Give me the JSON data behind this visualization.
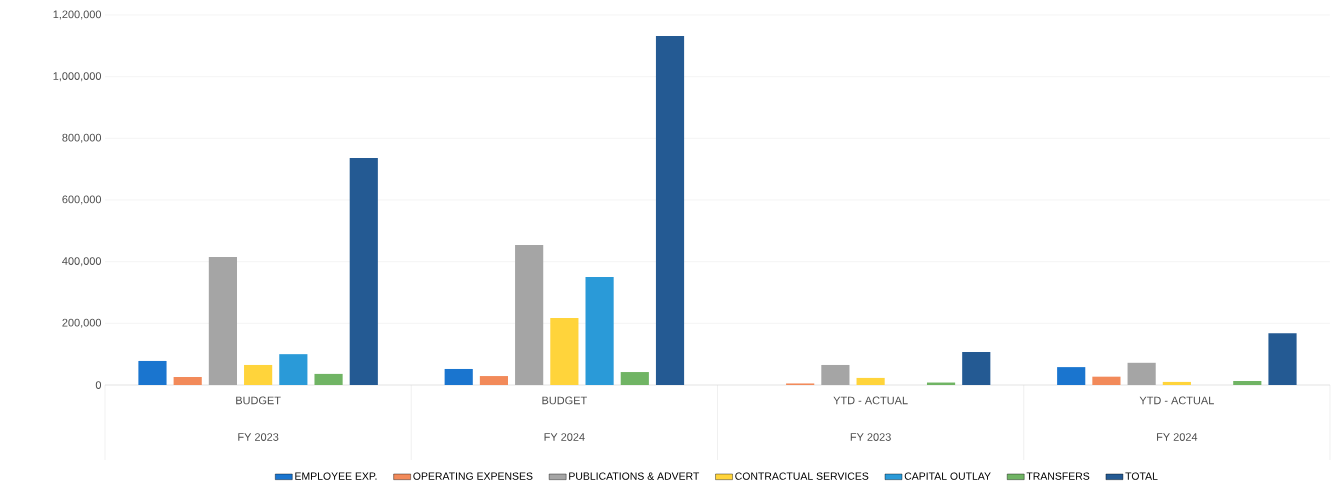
{
  "chart_data": {
    "type": "bar",
    "categories": [
      "BUDGET",
      "BUDGET",
      "YTD - ACTUAL",
      "YTD - ACTUAL"
    ],
    "annotations": [
      "FY 2023",
      "FY 2024",
      "FY 2023",
      "FY 2024"
    ],
    "series": [
      {
        "name": "EMPLOYEE EXP.",
        "color": "#1a75cf",
        "values": [
          78000,
          52000,
          null,
          58000
        ]
      },
      {
        "name": "OPERATING EXPENSES",
        "color": "#f28a5a",
        "values": [
          26000,
          29000,
          5000,
          27000
        ]
      },
      {
        "name": "PUBLICATIONS & ADVERT",
        "color": "#a5a5a5",
        "values": [
          415000,
          454000,
          65000,
          72000
        ]
      },
      {
        "name": "CONTRACTUAL SERVICES",
        "color": "#ffd43b",
        "values": [
          65000,
          217000,
          23000,
          10000
        ]
      },
      {
        "name": "CAPITAL OUTLAY",
        "color": "#2a9ad8",
        "values": [
          100000,
          350000,
          null,
          null
        ]
      },
      {
        "name": "TRANSFERS",
        "color": "#70b464",
        "values": [
          36000,
          42000,
          8000,
          13000
        ]
      },
      {
        "name": "TOTAL",
        "color": "#245a93",
        "values": [
          736000,
          1132000,
          107000,
          168000
        ]
      }
    ],
    "ylim": [
      0,
      1200000
    ],
    "yticks": [
      0,
      {
        "value": 200000,
        "label": "200,000"
      },
      {
        "value": 400000,
        "label": "400,000"
      },
      {
        "value": 600000,
        "label": "600,000"
      },
      {
        "value": 800000,
        "label": "800,000"
      },
      {
        "value": 1000000,
        "label": "1,000,000"
      },
      {
        "value": 1200000,
        "label": "1,200,000"
      }
    ],
    "grid": "y",
    "legend": "bottom"
  }
}
